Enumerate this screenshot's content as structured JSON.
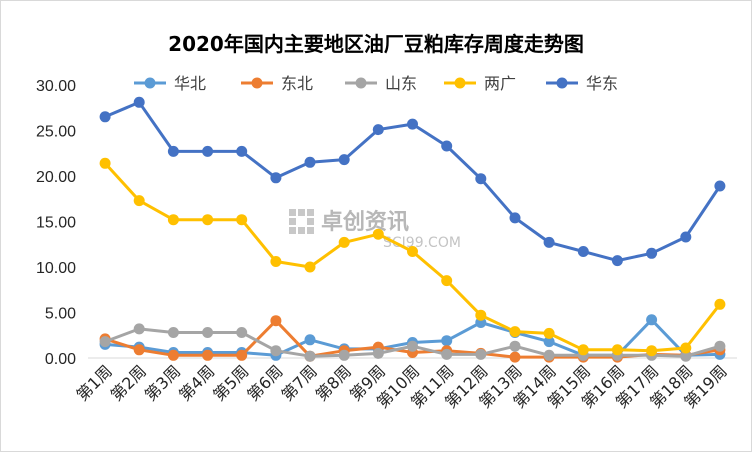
{
  "chart_data": {
    "type": "line",
    "title": "2020年国内主要地区油厂豆粕库存周度走势图",
    "categories": [
      "第1周",
      "第2周",
      "第3周",
      "第4周",
      "第5周",
      "第6周",
      "第7周",
      "第8周",
      "第9周",
      "第10周",
      "第11周",
      "第12周",
      "第13周",
      "第14周",
      "第15周",
      "第16周",
      "第17周",
      "第18周",
      "第19周"
    ],
    "y_ticks": [
      "0.00",
      "5.00",
      "10.00",
      "15.00",
      "20.00",
      "25.00",
      "30.00"
    ],
    "ylim": [
      0,
      30
    ],
    "grid": false,
    "legend_position": "top",
    "series": [
      {
        "name": "华北",
        "color": "#5b9bd5",
        "values": [
          1.5,
          1.2,
          0.6,
          0.6,
          0.6,
          0.3,
          2.0,
          1.0,
          1.0,
          1.7,
          1.9,
          3.9,
          2.8,
          1.8,
          0.3,
          0.3,
          4.2,
          0.3,
          0.4
        ]
      },
      {
        "name": "东北",
        "color": "#ed7d31",
        "values": [
          2.1,
          0.9,
          0.3,
          0.3,
          0.3,
          4.1,
          0.2,
          0.8,
          1.2,
          0.6,
          0.8,
          0.5,
          0.1,
          0.1,
          0.1,
          0.1,
          0.4,
          0.3,
          0.9
        ]
      },
      {
        "name": "山东",
        "color": "#a5a5a5",
        "values": [
          1.8,
          3.2,
          2.8,
          2.8,
          2.8,
          0.8,
          0.2,
          0.3,
          0.5,
          1.3,
          0.4,
          0.4,
          1.3,
          0.3,
          0.3,
          0.3,
          0.3,
          0.2,
          1.3
        ]
      },
      {
        "name": "两广",
        "color": "#ffc000",
        "values": [
          21.4,
          17.3,
          15.2,
          15.2,
          15.2,
          10.6,
          10.0,
          12.7,
          13.6,
          11.7,
          8.5,
          4.7,
          2.9,
          2.7,
          0.9,
          0.9,
          0.8,
          1.1,
          5.9
        ]
      },
      {
        "name": "华东",
        "color": "#4472c4",
        "values": [
          26.5,
          28.1,
          22.7,
          22.7,
          22.7,
          19.8,
          21.5,
          21.8,
          25.1,
          25.7,
          23.3,
          19.7,
          15.4,
          12.7,
          11.7,
          10.7,
          11.5,
          13.3,
          18.9
        ]
      }
    ]
  },
  "watermark": {
    "text": "卓创资讯",
    "url": "SCI99.COM"
  }
}
